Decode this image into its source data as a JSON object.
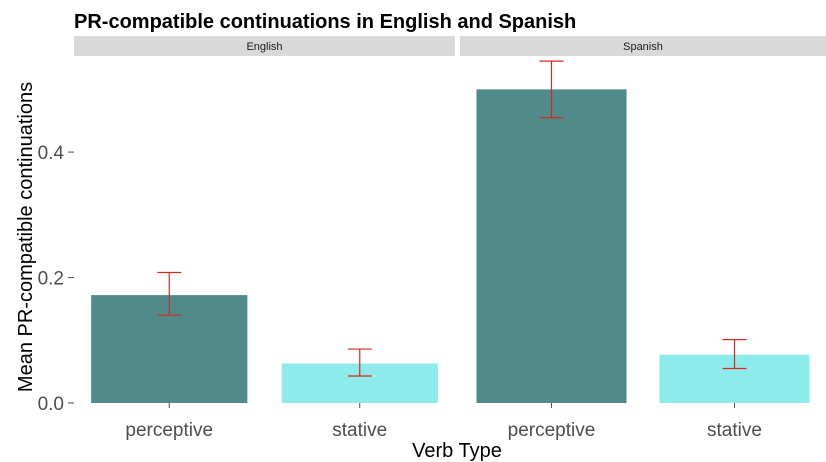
{
  "chart_data": {
    "type": "bar",
    "title": "PR-compatible continuations in English and Spanish",
    "xlabel": "Verb Type",
    "ylabel": "Mean PR-compatible continuations",
    "ylim": [
      0,
      0.55
    ],
    "yticks": [
      0.0,
      0.2,
      0.4
    ],
    "ytick_labels": [
      "0.0",
      "0.2",
      "0.4"
    ],
    "grid": false,
    "legend": "none",
    "facets": [
      {
        "label": "English",
        "categories": [
          "perceptive",
          "stative"
        ],
        "values": [
          0.172,
          0.063
        ],
        "error_low": [
          0.14,
          0.043
        ],
        "error_high": [
          0.208,
          0.086
        ]
      },
      {
        "label": "Spanish",
        "categories": [
          "perceptive",
          "stative"
        ],
        "values": [
          0.5,
          0.077
        ],
        "error_low": [
          0.455,
          0.055
        ],
        "error_high": [
          0.545,
          0.101
        ]
      }
    ],
    "colors": {
      "perceptive": "#508a8a",
      "stative": "#8deceb",
      "error_bar": "#d62a1e",
      "strip": "#d9d9d9"
    }
  }
}
